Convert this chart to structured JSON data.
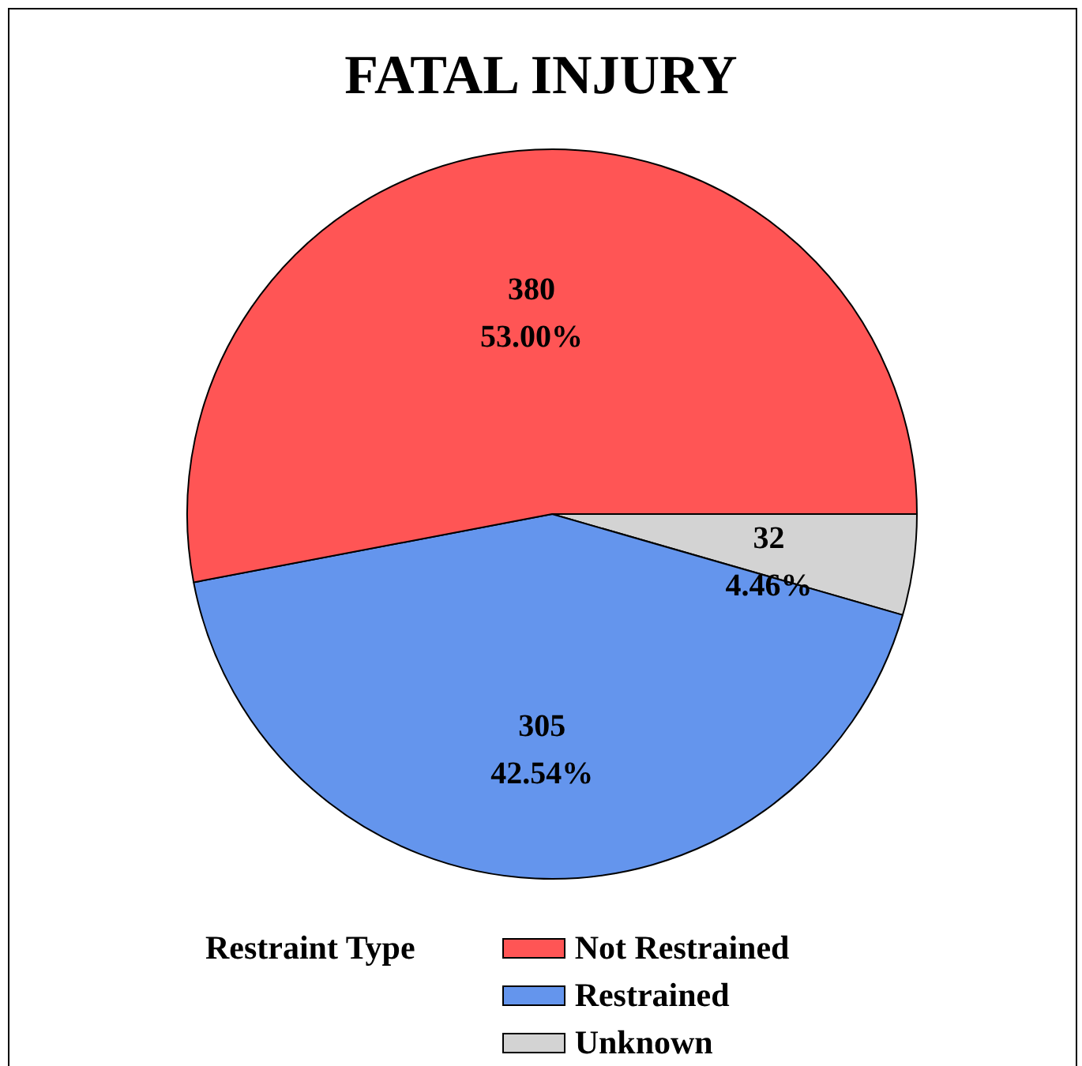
{
  "chart_data": {
    "type": "pie",
    "title": "FATAL INJURY",
    "legend_title": "Restraint Type",
    "legend": "bottom",
    "categories": [
      "Not Restrained",
      "Restrained",
      "Unknown"
    ],
    "values": [
      380,
      305,
      32
    ],
    "colors": [
      "#ff5555",
      "#6495ed",
      "#d3d3d3"
    ],
    "value_labels": [
      "380\n53.00%",
      "305\n42.54%",
      "32\n4.46%"
    ]
  }
}
